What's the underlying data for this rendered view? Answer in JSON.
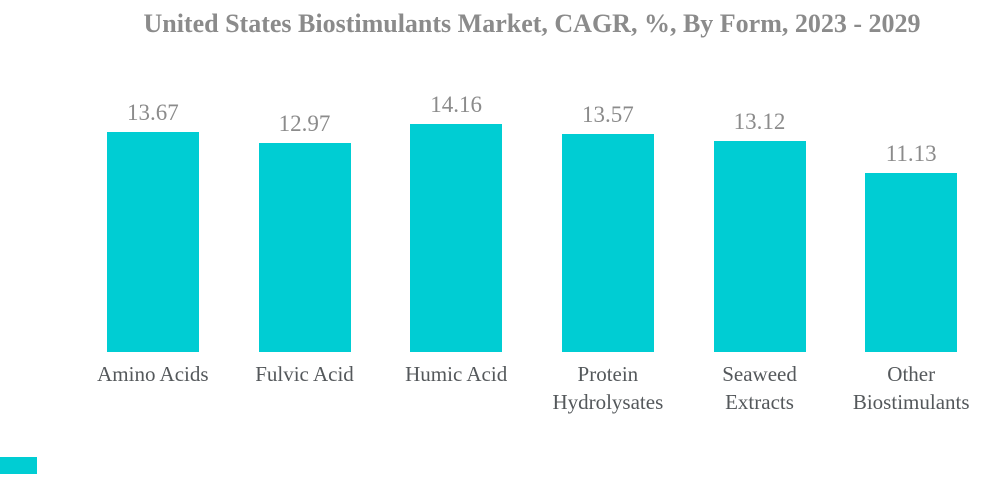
{
  "chart_data": {
    "type": "bar",
    "title": "United States Biostimulants Market, CAGR, %, By Form, 2023 - 2029",
    "categories": [
      "Amino Acids",
      "Fulvic Acid",
      "Humic Acid",
      "Protein Hydrolysates",
      "Seaweed Extracts",
      "Other Biostimulants"
    ],
    "values": [
      13.67,
      12.97,
      14.16,
      13.57,
      13.12,
      11.13
    ],
    "value_labels": [
      "13.67",
      "12.97",
      "14.16",
      "13.57",
      "13.12",
      "11.13"
    ],
    "xlabel": "",
    "ylabel": "",
    "ylim": [
      0,
      14.16
    ],
    "grid": false,
    "legend": "none",
    "axes_hidden": true,
    "colors": {
      "bar": "#00CDD3",
      "title_text": "#8B8B8B",
      "value_text": "#8B8B8B",
      "category_text": "#54585B",
      "background": "#FFFFFF"
    }
  },
  "watermark": {
    "corner_accent_color": "#00CDD3"
  }
}
